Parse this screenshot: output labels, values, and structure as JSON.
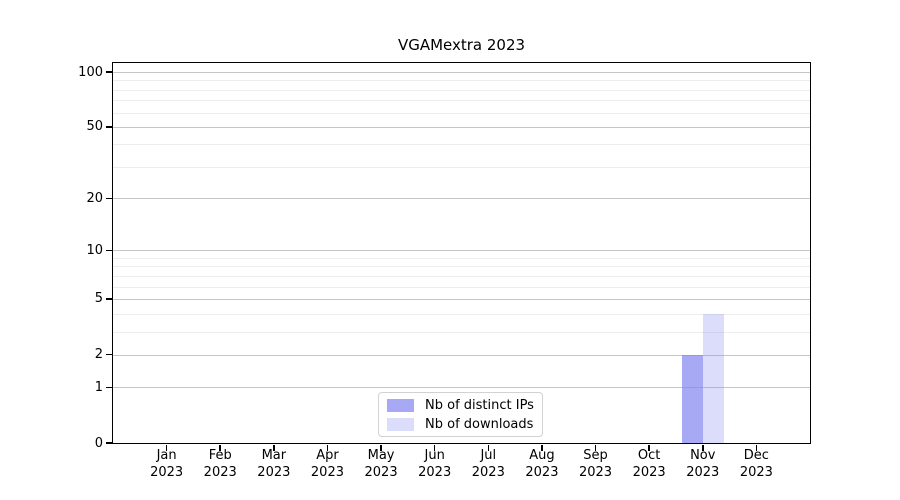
{
  "chart_data": {
    "type": "bar",
    "title": "VGAMextra 2023",
    "categories": [
      "Jan",
      "Feb",
      "Mar",
      "Apr",
      "May",
      "Jun",
      "Jul",
      "Aug",
      "Sep",
      "Oct",
      "Nov",
      "Dec"
    ],
    "x_year_label": "2023",
    "series": [
      {
        "name": "Nb of distinct IPs",
        "color": "rgba(128,130,240,0.69)",
        "values": [
          0,
          0,
          0,
          0,
          0,
          0,
          0,
          0,
          0,
          0,
          2,
          0
        ]
      },
      {
        "name": "Nb of downloads",
        "color": "rgba(128,130,240,0.28)",
        "values": [
          0,
          0,
          0,
          0,
          0,
          0,
          0,
          0,
          0,
          0,
          4,
          0
        ]
      }
    ],
    "yscale": "log1p",
    "ylim": [
      0,
      112
    ],
    "yticks": [
      100,
      50,
      20,
      10,
      5,
      2,
      1,
      0
    ],
    "minor_gridlines": [
      3,
      4,
      6,
      7,
      8,
      9,
      30,
      40,
      60,
      70,
      80,
      90
    ],
    "grid": true,
    "legend_position": "lower center",
    "colors": {
      "grid_major": "#c6c6c6",
      "grid_minor": "#ededed",
      "spine": "#000000",
      "legend_border": "#d2d2d2",
      "text": "#000000"
    }
  }
}
